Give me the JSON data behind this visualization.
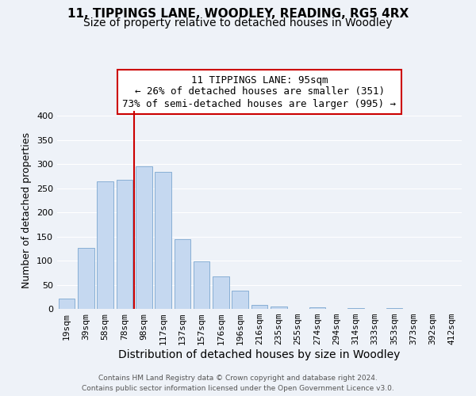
{
  "title": "11, TIPPINGS LANE, WOODLEY, READING, RG5 4RX",
  "subtitle": "Size of property relative to detached houses in Woodley",
  "xlabel": "Distribution of detached houses by size in Woodley",
  "ylabel": "Number of detached properties",
  "bar_labels": [
    "19sqm",
    "39sqm",
    "58sqm",
    "78sqm",
    "98sqm",
    "117sqm",
    "137sqm",
    "157sqm",
    "176sqm",
    "196sqm",
    "216sqm",
    "235sqm",
    "255sqm",
    "274sqm",
    "294sqm",
    "314sqm",
    "333sqm",
    "353sqm",
    "373sqm",
    "392sqm",
    "412sqm"
  ],
  "bar_values": [
    22,
    127,
    264,
    267,
    295,
    284,
    145,
    98,
    68,
    37,
    9,
    5,
    0,
    3,
    0,
    2,
    0,
    1,
    0,
    0,
    0
  ],
  "bar_color": "#c5d8f0",
  "bar_edge_color": "#7ba7d0",
  "background_color": "#eef2f8",
  "grid_color": "#ffffff",
  "ylim": [
    0,
    410
  ],
  "yticks": [
    0,
    50,
    100,
    150,
    200,
    250,
    300,
    350,
    400
  ],
  "property_line_color": "#cc0000",
  "annotation_text": "11 TIPPINGS LANE: 95sqm\n← 26% of detached houses are smaller (351)\n73% of semi-detached houses are larger (995) →",
  "annotation_box_color": "#ffffff",
  "annotation_box_edge": "#cc0000",
  "footer_line1": "Contains HM Land Registry data © Crown copyright and database right 2024.",
  "footer_line2": "Contains public sector information licensed under the Open Government Licence v3.0.",
  "title_fontsize": 11,
  "subtitle_fontsize": 10,
  "xlabel_fontsize": 10,
  "ylabel_fontsize": 9,
  "tick_fontsize": 8,
  "annot_fontsize": 9
}
